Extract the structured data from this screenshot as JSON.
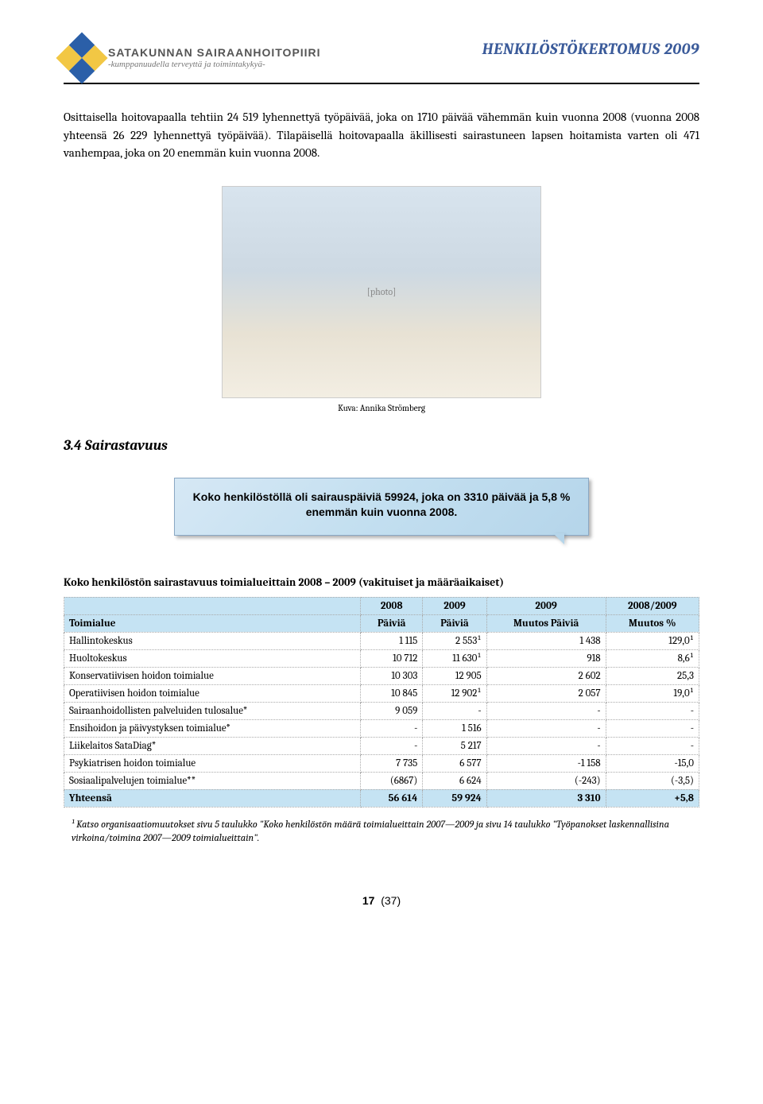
{
  "header": {
    "org_title": "SATAKUNNAN SAIRAANHOITOPIIRI",
    "org_sub": "-kumppanuudella terveyttä ja toimintakykyä-",
    "doc_title": "HENKILÖSTÖKERTOMUS 2009"
  },
  "body_paragraph": "Osittaisella hoitovapaalla tehtiin 24 519 lyhennettyä työpäivää, joka on 1710  päivää vähemmän kuin vuonna 2008 (vuonna 2008 yhteensä 26 229 lyhennettyä työpäivää).  Tilapäisellä hoitovapaalla äkillisesti sairastuneen lapsen hoitamista varten oli 471 vanhempaa, joka on 20 enemmän kuin vuonna 2008.",
  "photo_caption": "Kuva: Annika Strömberg",
  "section_heading": "3.4 Sairastavuus",
  "callout_text": "Koko henkilöstöllä oli sairauspäiviä  59924, joka on 3310 päivää ja 5,8 % enemmän kuin vuonna 2008.",
  "table": {
    "title": "Koko henkilöstön sairastavuus toimialueittain 2008 – 2009 (vakituiset ja määräaikaiset)",
    "header_row1": [
      "",
      "2008",
      "2009",
      "2009",
      "2008/2009"
    ],
    "header_row2": [
      "Toimialue",
      "Päiviä",
      "Päiviä",
      "Muutos Päiviä",
      "Muutos %"
    ],
    "rows": [
      {
        "label": "Hallintokeskus",
        "c1": "1 115",
        "c2": "2 553¹",
        "c3": "1 438",
        "c4": "129,0¹"
      },
      {
        "label": "Huoltokeskus",
        "c1": "10 712",
        "c2": "11 630¹",
        "c3": "918",
        "c4": "8,6¹"
      },
      {
        "label": "Konservatiivisen hoidon toimialue",
        "c1": "10 303",
        "c2": "12 905",
        "c3": "2 602",
        "c4": "25,3"
      },
      {
        "label": "Operatiivisen hoidon toimialue",
        "c1": "10 845",
        "c2": "12 902¹",
        "c3": "2 057",
        "c4": "19,0¹"
      },
      {
        "label": "Sairaanhoidollisten palveluiden tulosalue*",
        "c1": "9 059",
        "c2": "-",
        "c3": "-",
        "c4": "-"
      },
      {
        "label": "Ensihoidon ja päivystyksen toimialue*",
        "c1": "-",
        "c2": "1 516",
        "c3": "-",
        "c4": "-"
      },
      {
        "label": "Liikelaitos SataDiag*",
        "c1": "-",
        "c2": "5 217",
        "c3": "-",
        "c4": "-"
      },
      {
        "label": "Psykiatrisen hoidon toimialue",
        "c1": "7 735",
        "c2": "6 577",
        "c3": "-1 158",
        "c4": "-15,0"
      },
      {
        "label": "Sosiaalipalvelujen toimialue**",
        "c1": "(6867)",
        "c2": "6 624",
        "c3": "(-243)",
        "c4": "(-3,5)"
      }
    ],
    "total": {
      "label": "Yhteensä",
      "c1": "56 614",
      "c2": "59 924",
      "c3": "3 310",
      "c4": "+5,8"
    },
    "colors": {
      "header_bg": "#c5e3f3",
      "border": "#aaaaaa"
    }
  },
  "footnote": "¹ Katso organisaatiomuutokset sivu 5 taulukko \"Koko henkilöstön määrä toimialueittain 2007—2009 ja sivu 14 taulukko \"Työpanokset laskennallisina virkoina/toimina 2007—2009 toimialueittain\".",
  "page_number": {
    "current": "17",
    "total": "(37)"
  }
}
